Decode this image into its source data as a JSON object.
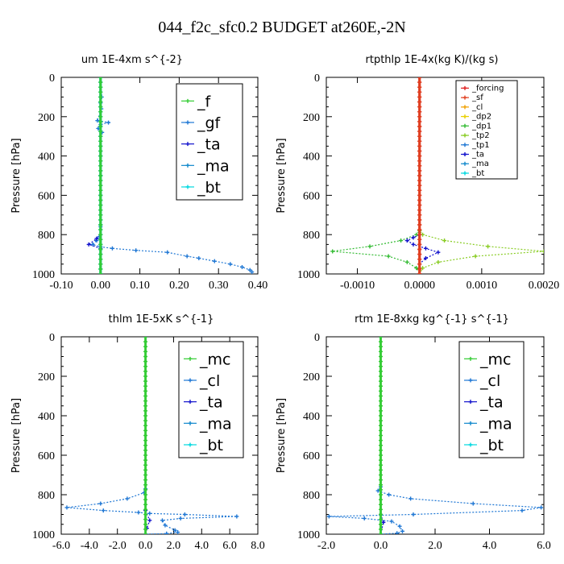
{
  "title": "044_f2c_sfc0.2  BUDGET at260E,-2N",
  "chart_data": [
    {
      "type": "line",
      "title": "um   1E-4xm s^{-2}",
      "ylabel": "Pressure [hPa]",
      "xlim": [
        -0.1,
        0.4
      ],
      "ylim": [
        1000,
        0
      ],
      "xticks": [
        "-0.10",
        "0.00",
        "0.10",
        "0.20",
        "0.30",
        "0.40"
      ],
      "xtick_values": [
        -0.1,
        0.0,
        0.1,
        0.2,
        0.3,
        0.4
      ],
      "yticks": [
        "0",
        "200",
        "400",
        "600",
        "800",
        "1000"
      ],
      "legend_size": "large",
      "legend": [
        "_f",
        "_gf",
        "_ta",
        "_ma",
        "_bt"
      ],
      "colors": [
        "#33cc33",
        "#1f77d4",
        "#1111cc",
        "#1188cc",
        "#00d8e0"
      ],
      "series": [
        {
          "name": "_gf",
          "color": "#1f77d4",
          "x": [
            0.0,
            0.003,
            0.0,
            0.002,
            -0.008,
            0.02,
            0.0,
            -0.006,
            0.004,
            0.0,
            0.0,
            0.0,
            0.0,
            0.0,
            0.0,
            0.0,
            -0.003,
            -0.01,
            -0.02,
            0.0,
            0.03,
            0.09,
            0.17,
            0.22,
            0.25,
            0.29,
            0.33,
            0.36,
            0.38,
            0.385
          ],
          "y": [
            0,
            100,
            130,
            160,
            220,
            230,
            240,
            260,
            280,
            300,
            400,
            500,
            600,
            700,
            760,
            800,
            810,
            830,
            850,
            862,
            870,
            880,
            890,
            910,
            920,
            935,
            950,
            965,
            980,
            990
          ]
        },
        {
          "name": "_ta",
          "color": "#1111cc",
          "x": [
            0.0,
            0.0,
            -0.01,
            -0.03,
            0.0,
            0.0
          ],
          "y": [
            0,
            800,
            820,
            850,
            870,
            1000
          ]
        },
        {
          "name": "_ma",
          "color": "#1188cc",
          "x": [
            0.0,
            0.0
          ],
          "y": [
            0,
            1000
          ]
        },
        {
          "name": "_bt",
          "color": "#00d8e0",
          "x": [
            0.0,
            0.0
          ],
          "y": [
            0,
            1000
          ]
        },
        {
          "name": "_f",
          "color": "#33cc33",
          "x": [
            0.0,
            0.0
          ],
          "y": [
            0,
            1000
          ]
        }
      ]
    },
    {
      "type": "line",
      "title": "rtpthlp   1E-4x(kg K)/(kg s)",
      "ylabel": "Pressure [hPa]",
      "xlim": [
        -0.0015,
        0.002
      ],
      "ylim": [
        1000,
        0
      ],
      "xticks": [
        "-0.0010",
        "0.0000",
        "0.0010",
        "0.0020"
      ],
      "xtick_values": [
        -0.001,
        0.0,
        0.001,
        0.002
      ],
      "yticks": [
        "0",
        "200",
        "400",
        "600",
        "800",
        "1000"
      ],
      "legend_size": "small",
      "legend": [
        "_forcing",
        "_sf",
        "_cl",
        "_dp2",
        "_dp1",
        "_tp2",
        "_tp1",
        "_ta",
        "_ma",
        "_bt"
      ],
      "colors": [
        "#e02020",
        "#e04020",
        "#f0a000",
        "#e8d000",
        "#33bb33",
        "#88cc22",
        "#1f77d4",
        "#1111cc",
        "#1188cc",
        "#00d8e0"
      ],
      "series": [
        {
          "name": "_dp1",
          "color": "#33bb33",
          "x": [
            0.0,
            0.0,
            -5e-05,
            -0.0003,
            -0.0008,
            -0.0014,
            -0.0005,
            -0.0002,
            -5e-05,
            0.0
          ],
          "y": [
            0,
            780,
            800,
            830,
            860,
            885,
            910,
            940,
            970,
            1000
          ]
        },
        {
          "name": "_tp2",
          "color": "#88cc22",
          "x": [
            0.0,
            0.0,
            5e-05,
            0.0004,
            0.0011,
            0.002,
            0.0009,
            0.0003,
            5e-05,
            0.0
          ],
          "y": [
            0,
            780,
            800,
            830,
            860,
            885,
            910,
            940,
            970,
            1000
          ]
        },
        {
          "name": "_ta",
          "color": "#1111cc",
          "x": [
            0.0,
            0.0,
            -0.0001,
            -0.0002,
            -0.0001,
            0.0001,
            0.0003,
            0.0001,
            0.0,
            0.0
          ],
          "y": [
            0,
            800,
            815,
            830,
            850,
            870,
            890,
            920,
            950,
            1000
          ]
        },
        {
          "name": "_forcing",
          "color": "#e02020",
          "x": [
            0.0,
            0.0
          ],
          "y": [
            0,
            1000
          ]
        },
        {
          "name": "_sf",
          "color": "#e04020",
          "x": [
            0.0,
            0.0
          ],
          "y": [
            0,
            1000
          ]
        }
      ]
    },
    {
      "type": "line",
      "title": "thlm   1E-5xK  s^{-1}",
      "ylabel": "Pressure [hPa]",
      "xlim": [
        -6.0,
        8.0
      ],
      "ylim": [
        1000,
        0
      ],
      "xticks": [
        "-6.0",
        "-4.0",
        "-2.0",
        "0.0",
        "2.0",
        "4.0",
        "6.0",
        "8.0"
      ],
      "xtick_values": [
        -6,
        -4,
        -2,
        0,
        2,
        4,
        6,
        8
      ],
      "yticks": [
        "0",
        "200",
        "400",
        "600",
        "800",
        "1000"
      ],
      "legend_size": "large",
      "legend": [
        "_mc",
        "_cl",
        "_ta",
        "_ma",
        "_bt"
      ],
      "colors": [
        "#33cc33",
        "#1f77d4",
        "#1111cc",
        "#1188cc",
        "#00d8e0"
      ],
      "series": [
        {
          "name": "_cl",
          "color": "#1f77d4",
          "x": [
            0.0,
            0.0,
            -0.1,
            -1.3,
            -3.2,
            -5.6,
            -3.0,
            -0.5,
            0.3,
            2.8,
            6.5,
            2.5,
            1.2,
            1.4,
            2.1,
            2.3,
            1.5,
            0.0
          ],
          "y": [
            0,
            770,
            790,
            820,
            845,
            865,
            880,
            890,
            895,
            900,
            910,
            920,
            930,
            955,
            980,
            990,
            997,
            1000
          ]
        },
        {
          "name": "_ta",
          "color": "#1111cc",
          "x": [
            0.0,
            0.0,
            0.3,
            0.1,
            0.0
          ],
          "y": [
            0,
            880,
            930,
            970,
            1000
          ]
        },
        {
          "name": "_mc",
          "color": "#33cc33",
          "x": [
            0.0,
            0.0
          ],
          "y": [
            0,
            1000
          ]
        }
      ]
    },
    {
      "type": "line",
      "title": "rtm   1E-8xkg kg^{-1} s^{-1}",
      "ylabel": "Pressure [hPa]",
      "xlim": [
        -2.0,
        6.0
      ],
      "ylim": [
        1000,
        0
      ],
      "xticks": [
        "-2.0",
        "0.0",
        "2.0",
        "4.0",
        "6.0"
      ],
      "xtick_values": [
        -2,
        0,
        2,
        4,
        6
      ],
      "yticks": [
        "0",
        "200",
        "400",
        "600",
        "800",
        "1000"
      ],
      "legend_size": "large",
      "legend": [
        "_mc",
        "_cl",
        "_ta",
        "_ma",
        "_bt"
      ],
      "colors": [
        "#33cc33",
        "#1f77d4",
        "#1111cc",
        "#1188cc",
        "#00d8e0"
      ],
      "series": [
        {
          "name": "_cl",
          "color": "#1f77d4",
          "x": [
            0.0,
            0.0,
            -0.1,
            0.3,
            1.1,
            3.4,
            5.9,
            5.2,
            1.2,
            -1.9,
            -0.6,
            0.4,
            0.7,
            0.8,
            0.6,
            0.0
          ],
          "y": [
            0,
            760,
            780,
            800,
            820,
            845,
            865,
            880,
            900,
            910,
            920,
            935,
            960,
            985,
            995,
            1000
          ]
        },
        {
          "name": "_ta",
          "color": "#1111cc",
          "x": [
            0.0,
            0.0,
            0.1,
            0.0
          ],
          "y": [
            0,
            900,
            940,
            1000
          ]
        },
        {
          "name": "_mc",
          "color": "#33cc33",
          "x": [
            0.0,
            0.0
          ],
          "y": [
            0,
            1000
          ]
        }
      ]
    }
  ]
}
